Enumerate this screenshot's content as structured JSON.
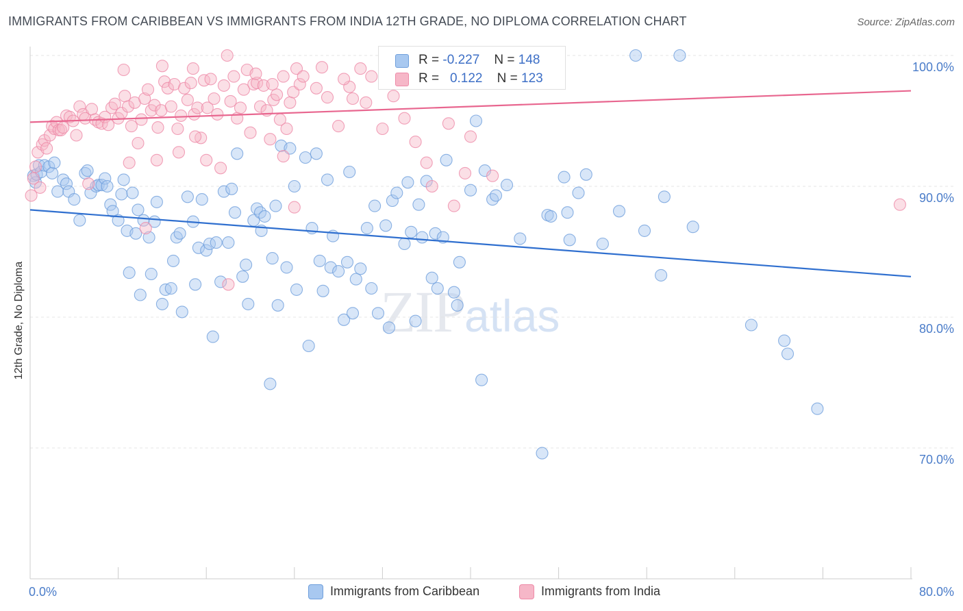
{
  "title": "IMMIGRANTS FROM CARIBBEAN VS IMMIGRANTS FROM INDIA 12TH GRADE, NO DIPLOMA CORRELATION CHART",
  "source": "Source: ZipAtlas.com",
  "watermark": {
    "zip": "ZIP",
    "atlas": "atlas"
  },
  "legend": {
    "rows": [
      {
        "r_label": "R =",
        "r_value": "-0.227",
        "n_label": "N =",
        "n_value": "148",
        "color": "#a8c8f0"
      },
      {
        "r_label": "R =",
        "r_value": "0.122",
        "n_label": "N =",
        "n_value": "123",
        "color": "#f6b7c8"
      }
    ]
  },
  "chart_data": {
    "type": "scatter",
    "ylabel": "12th Grade, No Diploma",
    "xlim": [
      0,
      80
    ],
    "ylim": [
      60,
      100
    ],
    "x_tick_labels": [
      "0.0%",
      "80.0%"
    ],
    "y_ticks": [
      70,
      80,
      90,
      100
    ],
    "y_tick_labels": [
      "70.0%",
      "80.0%",
      "90.0%",
      "100.0%"
    ],
    "grid": true,
    "series": [
      {
        "name": "Immigrants from Caribbean",
        "color": "#6f9fdc",
        "fill": "#a8c8f0",
        "trend": {
          "x": [
            0,
            80
          ],
          "y": [
            88.2,
            83.1
          ]
        },
        "points": [
          [
            0.3,
            90.8
          ],
          [
            0.5,
            90.3
          ],
          [
            0.6,
            90.9
          ],
          [
            0.8,
            91.6
          ],
          [
            1.0,
            91.1
          ],
          [
            1.3,
            91.6
          ],
          [
            1.7,
            91.5
          ],
          [
            2.0,
            91.0
          ],
          [
            2.2,
            91.8
          ],
          [
            2.5,
            89.6
          ],
          [
            3.0,
            90.5
          ],
          [
            3.3,
            90.2
          ],
          [
            3.5,
            89.6
          ],
          [
            4.0,
            89.0
          ],
          [
            4.5,
            87.4
          ],
          [
            5.0,
            91.0
          ],
          [
            5.2,
            91.2
          ],
          [
            5.5,
            89.5
          ],
          [
            6.0,
            90.0
          ],
          [
            6.2,
            90.1
          ],
          [
            6.5,
            90.1
          ],
          [
            6.8,
            90.6
          ],
          [
            7.0,
            90.0
          ],
          [
            7.3,
            88.6
          ],
          [
            7.5,
            88.1
          ],
          [
            8.0,
            87.4
          ],
          [
            8.3,
            89.4
          ],
          [
            8.5,
            90.5
          ],
          [
            8.8,
            86.6
          ],
          [
            9.0,
            83.4
          ],
          [
            9.3,
            89.5
          ],
          [
            9.6,
            86.4
          ],
          [
            9.8,
            88.2
          ],
          [
            10.0,
            81.7
          ],
          [
            10.3,
            87.4
          ],
          [
            10.8,
            86.1
          ],
          [
            11.0,
            83.3
          ],
          [
            11.3,
            87.3
          ],
          [
            11.5,
            88.8
          ],
          [
            12.0,
            81.0
          ],
          [
            12.3,
            82.1
          ],
          [
            12.8,
            82.2
          ],
          [
            13.0,
            84.3
          ],
          [
            13.3,
            86.1
          ],
          [
            13.6,
            86.4
          ],
          [
            13.8,
            80.4
          ],
          [
            14.3,
            89.2
          ],
          [
            14.8,
            87.3
          ],
          [
            15.0,
            82.5
          ],
          [
            15.3,
            85.3
          ],
          [
            15.6,
            89.0
          ],
          [
            16.0,
            85.1
          ],
          [
            16.3,
            85.6
          ],
          [
            16.6,
            78.5
          ],
          [
            16.9,
            85.7
          ],
          [
            17.3,
            82.7
          ],
          [
            17.6,
            89.6
          ],
          [
            18.0,
            85.7
          ],
          [
            18.3,
            89.8
          ],
          [
            18.6,
            88.0
          ],
          [
            18.8,
            92.5
          ],
          [
            19.3,
            83.1
          ],
          [
            19.6,
            84.0
          ],
          [
            19.8,
            81.0
          ],
          [
            20.3,
            87.4
          ],
          [
            20.6,
            88.3
          ],
          [
            20.9,
            88.0
          ],
          [
            21.0,
            86.6
          ],
          [
            21.3,
            87.7
          ],
          [
            21.8,
            74.9
          ],
          [
            22.0,
            84.5
          ],
          [
            22.3,
            88.5
          ],
          [
            22.5,
            80.9
          ],
          [
            22.8,
            93.1
          ],
          [
            23.3,
            83.8
          ],
          [
            23.6,
            92.9
          ],
          [
            24.0,
            90.0
          ],
          [
            24.2,
            82.1
          ],
          [
            25.0,
            92.2
          ],
          [
            25.3,
            77.8
          ],
          [
            25.6,
            86.8
          ],
          [
            26.0,
            92.5
          ],
          [
            26.3,
            84.3
          ],
          [
            26.6,
            82.0
          ],
          [
            27.0,
            90.5
          ],
          [
            27.3,
            83.8
          ],
          [
            27.5,
            86.2
          ],
          [
            28.0,
            83.5
          ],
          [
            28.5,
            79.8
          ],
          [
            28.8,
            84.2
          ],
          [
            29.0,
            91.1
          ],
          [
            29.3,
            80.3
          ],
          [
            29.6,
            82.9
          ],
          [
            30.0,
            83.7
          ],
          [
            30.6,
            86.8
          ],
          [
            31.0,
            82.2
          ],
          [
            31.3,
            88.5
          ],
          [
            31.6,
            80.3
          ],
          [
            32.3,
            87.0
          ],
          [
            32.6,
            79.2
          ],
          [
            32.9,
            88.9
          ],
          [
            33.3,
            89.5
          ],
          [
            34.0,
            85.6
          ],
          [
            34.3,
            90.3
          ],
          [
            34.6,
            86.5
          ],
          [
            35.0,
            79.7
          ],
          [
            35.3,
            88.6
          ],
          [
            35.6,
            86.1
          ],
          [
            36.0,
            90.4
          ],
          [
            36.5,
            83.0
          ],
          [
            36.8,
            86.4
          ],
          [
            37.0,
            82.2
          ],
          [
            37.5,
            86.1
          ],
          [
            37.8,
            92.0
          ],
          [
            38.5,
            81.9
          ],
          [
            38.8,
            80.9
          ],
          [
            39.0,
            84.2
          ],
          [
            40.0,
            89.7
          ],
          [
            40.5,
            95.0
          ],
          [
            41.0,
            75.2
          ],
          [
            41.3,
            91.2
          ],
          [
            42.0,
            89.0
          ],
          [
            42.3,
            89.3
          ],
          [
            43.3,
            90.1
          ],
          [
            44.5,
            86.0
          ],
          [
            46.5,
            69.6
          ],
          [
            47.0,
            87.8
          ],
          [
            47.3,
            87.7
          ],
          [
            48.5,
            90.7
          ],
          [
            48.8,
            88.0
          ],
          [
            49.0,
            85.9
          ],
          [
            49.8,
            89.5
          ],
          [
            50.5,
            90.9
          ],
          [
            52.0,
            85.6
          ],
          [
            53.5,
            88.1
          ],
          [
            55.0,
            100.0
          ],
          [
            55.8,
            86.6
          ],
          [
            57.3,
            83.2
          ],
          [
            57.6,
            89.2
          ],
          [
            59.0,
            100.0
          ],
          [
            60.2,
            86.9
          ],
          [
            65.5,
            79.4
          ],
          [
            68.5,
            78.2
          ],
          [
            68.8,
            77.2
          ],
          [
            71.5,
            73.0
          ]
        ]
      },
      {
        "name": "Immigrants from India",
        "color": "#ee8aa8",
        "fill": "#f6b7c8",
        "trend": {
          "x": [
            0,
            80
          ],
          "y": [
            94.9,
            97.3
          ]
        },
        "points": [
          [
            0.1,
            89.3
          ],
          [
            0.3,
            90.6
          ],
          [
            0.5,
            91.5
          ],
          [
            0.7,
            92.6
          ],
          [
            0.9,
            89.9
          ],
          [
            1.1,
            93.2
          ],
          [
            1.3,
            93.5
          ],
          [
            1.5,
            92.9
          ],
          [
            1.8,
            93.9
          ],
          [
            2.0,
            94.6
          ],
          [
            2.2,
            94.4
          ],
          [
            2.4,
            94.9
          ],
          [
            2.6,
            94.3
          ],
          [
            2.8,
            94.3
          ],
          [
            3.0,
            94.5
          ],
          [
            3.3,
            95.4
          ],
          [
            3.6,
            95.3
          ],
          [
            3.9,
            95.0
          ],
          [
            4.2,
            93.9
          ],
          [
            4.5,
            96.1
          ],
          [
            4.8,
            95.5
          ],
          [
            5.0,
            95.2
          ],
          [
            5.3,
            90.2
          ],
          [
            5.6,
            95.9
          ],
          [
            5.9,
            95.1
          ],
          [
            6.2,
            94.9
          ],
          [
            6.5,
            94.8
          ],
          [
            6.8,
            95.3
          ],
          [
            7.1,
            94.7
          ],
          [
            7.4,
            96.0
          ],
          [
            7.7,
            96.3
          ],
          [
            8.0,
            95.2
          ],
          [
            8.3,
            95.6
          ],
          [
            8.6,
            96.9
          ],
          [
            8.9,
            96.1
          ],
          [
            9.2,
            94.6
          ],
          [
            9.5,
            96.4
          ],
          [
            9.8,
            93.3
          ],
          [
            10.1,
            95.1
          ],
          [
            10.4,
            96.7
          ],
          [
            10.7,
            97.4
          ],
          [
            11.0,
            95.8
          ],
          [
            11.3,
            96.2
          ],
          [
            11.6,
            94.5
          ],
          [
            11.9,
            95.8
          ],
          [
            12.2,
            98.0
          ],
          [
            12.5,
            97.5
          ],
          [
            12.8,
            96.1
          ],
          [
            13.1,
            97.8
          ],
          [
            13.4,
            94.4
          ],
          [
            13.7,
            95.4
          ],
          [
            14.0,
            97.5
          ],
          [
            14.3,
            96.6
          ],
          [
            14.6,
            97.9
          ],
          [
            14.9,
            95.5
          ],
          [
            15.2,
            96.0
          ],
          [
            15.5,
            93.7
          ],
          [
            15.8,
            98.1
          ],
          [
            16.1,
            96.0
          ],
          [
            16.4,
            98.2
          ],
          [
            16.7,
            96.7
          ],
          [
            17.0,
            95.5
          ],
          [
            17.3,
            91.4
          ],
          [
            17.6,
            97.7
          ],
          [
            17.9,
            100.0
          ],
          [
            18.2,
            96.5
          ],
          [
            18.5,
            98.4
          ],
          [
            18.8,
            95.2
          ],
          [
            19.1,
            96.0
          ],
          [
            19.4,
            97.4
          ],
          [
            19.7,
            98.9
          ],
          [
            20.0,
            94.1
          ],
          [
            20.3,
            97.8
          ],
          [
            20.6,
            97.9
          ],
          [
            20.9,
            96.1
          ],
          [
            21.2,
            97.7
          ],
          [
            21.5,
            95.8
          ],
          [
            21.8,
            93.6
          ],
          [
            22.1,
            96.6
          ],
          [
            22.4,
            97.0
          ],
          [
            22.7,
            95.1
          ],
          [
            23.0,
            98.4
          ],
          [
            23.3,
            94.4
          ],
          [
            23.6,
            96.4
          ],
          [
            23.9,
            97.2
          ],
          [
            24.2,
            99.0
          ],
          [
            24.5,
            97.8
          ],
          [
            24.8,
            98.4
          ],
          [
            26.5,
            99.1
          ],
          [
            27.0,
            96.8
          ],
          [
            28.0,
            94.6
          ],
          [
            29.0,
            97.6
          ],
          [
            29.3,
            96.7
          ],
          [
            30.0,
            99.0
          ],
          [
            32.0,
            94.4
          ],
          [
            33.0,
            96.9
          ],
          [
            34.0,
            95.2
          ],
          [
            35.0,
            93.4
          ],
          [
            36.0,
            91.8
          ],
          [
            38.0,
            94.8
          ],
          [
            40.0,
            93.8
          ],
          [
            42.0,
            90.8
          ],
          [
            79.0,
            88.6
          ],
          [
            8.5,
            98.9
          ],
          [
            12.0,
            99.2
          ],
          [
            14.8,
            99.0
          ],
          [
            20.5,
            98.6
          ],
          [
            22.0,
            97.8
          ],
          [
            26.0,
            97.5
          ],
          [
            28.5,
            98.2
          ],
          [
            30.5,
            96.4
          ],
          [
            31.0,
            98.4
          ],
          [
            16.0,
            92.0
          ],
          [
            18.0,
            82.5
          ],
          [
            10.5,
            86.8
          ],
          [
            24.0,
            88.4
          ],
          [
            36.5,
            90.0
          ],
          [
            39.5,
            91.0
          ],
          [
            9.0,
            91.8
          ],
          [
            11.5,
            92.0
          ],
          [
            13.5,
            92.6
          ],
          [
            15.0,
            93.8
          ],
          [
            23.0,
            92.3
          ],
          [
            38.5,
            88.5
          ]
        ]
      }
    ]
  }
}
